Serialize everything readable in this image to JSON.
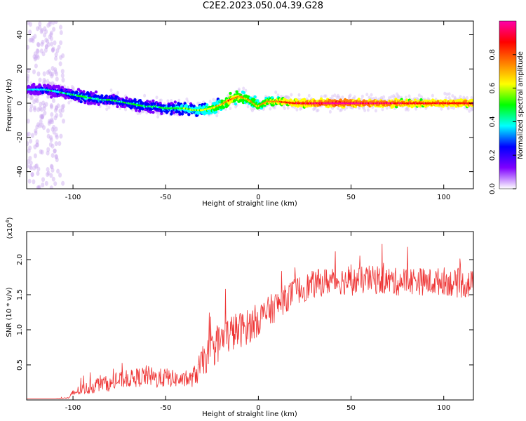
{
  "title": "C2E2.2023.050.04.39.G28",
  "chart_data": [
    {
      "type": "heatmap",
      "title": "",
      "xlabel": "Height of straight line (km)",
      "ylabel": "Frequency (Hz)",
      "xlim": [
        -125,
        116
      ],
      "ylim": [
        -50,
        48
      ],
      "xticks": [
        -100,
        -50,
        0,
        50,
        100
      ],
      "yticks": [
        -40,
        -20,
        0,
        20,
        40
      ],
      "xtick_labels": [
        "-100",
        "-50",
        "0",
        "50",
        "100"
      ],
      "ytick_labels": [
        "-40",
        "-20",
        "0",
        "20",
        "40"
      ],
      "ridge": {
        "x": [
          -125,
          -115,
          -105,
          -100,
          -95,
          -90,
          -85,
          -80,
          -75,
          -70,
          -65,
          -60,
          -55,
          -50,
          -45,
          -40,
          -35,
          -30,
          -25,
          -20,
          -15,
          -10,
          -5,
          0,
          5,
          10,
          20,
          30,
          40,
          50,
          60,
          70,
          80,
          90,
          100,
          116
        ],
        "frequency": [
          8,
          8,
          6,
          5,
          4,
          3,
          2,
          2,
          1,
          0,
          -1,
          -2,
          -2,
          -3,
          -3,
          -3,
          -4,
          -4,
          -3,
          -1,
          2,
          4,
          2,
          -2,
          1,
          1,
          0,
          0,
          0,
          0,
          0,
          0,
          0,
          0,
          0,
          0
        ],
        "amplitude": [
          0.25,
          0.3,
          0.3,
          0.35,
          0.4,
          0.35,
          0.35,
          0.35,
          0.35,
          0.35,
          0.4,
          0.35,
          0.35,
          0.4,
          0.4,
          0.45,
          0.45,
          0.5,
          0.55,
          0.6,
          0.7,
          0.65,
          0.6,
          0.6,
          0.65,
          0.7,
          0.8,
          0.85,
          0.9,
          0.9,
          0.85,
          0.85,
          0.8,
          0.8,
          0.8,
          0.8
        ]
      },
      "colorbar": {
        "label": "Normalized spectral amplitude",
        "range": [
          0,
          1
        ],
        "ticks": [
          0.0,
          0.2,
          0.4,
          0.6,
          0.8
        ],
        "tick_labels": [
          "0.0",
          "0.2",
          "0.4",
          "0.6",
          "0.8"
        ],
        "colors": [
          "#ffffff",
          "#7f00ff",
          "#0000ff",
          "#00ffff",
          "#00ff00",
          "#ffff00",
          "#ff7f00",
          "#ff0000",
          "#ff00aa"
        ]
      }
    },
    {
      "type": "line",
      "title": "",
      "xlabel": "Height of straight line (km)",
      "ylabel": "SNR (10 * v/v)",
      "exponent_label": "(x10",
      "exponent_power": "4",
      "exponent_close": ")",
      "xlim": [
        -125,
        116
      ],
      "ylim": [
        0,
        2.4
      ],
      "xticks": [
        -100,
        -50,
        0,
        50,
        100
      ],
      "yticks": [
        0.5,
        1.0,
        1.5,
        2.0
      ],
      "xtick_labels": [
        "-100",
        "-50",
        "0",
        "50",
        "100"
      ],
      "ytick_labels": [
        "0.5",
        "1.0",
        "1.5",
        "2.0"
      ],
      "series": [
        {
          "color": "#ee3333",
          "x": [
            -125,
            -110,
            -102,
            -100,
            -95,
            -90,
            -85,
            -80,
            -75,
            -70,
            -65,
            -60,
            -55,
            -50,
            -45,
            -40,
            -36,
            -33,
            -30,
            -25,
            -20,
            -15,
            -10,
            -5,
            0,
            5,
            10,
            15,
            20,
            25,
            30,
            35,
            40,
            45,
            50,
            55,
            60,
            65,
            70,
            75,
            80,
            85,
            90,
            95,
            100,
            105,
            110,
            116
          ],
          "values": [
            0.02,
            0.02,
            0.03,
            0.1,
            0.15,
            0.18,
            0.25,
            0.22,
            0.28,
            0.3,
            0.32,
            0.35,
            0.3,
            0.32,
            0.3,
            0.28,
            0.3,
            0.4,
            0.55,
            0.7,
            0.85,
            0.95,
            1.0,
            1.05,
            1.15,
            1.25,
            1.35,
            1.45,
            1.55,
            1.6,
            1.65,
            1.68,
            1.7,
            1.7,
            1.68,
            1.7,
            1.72,
            1.7,
            1.7,
            1.68,
            1.7,
            1.7,
            1.68,
            1.68,
            1.7,
            1.66,
            1.65,
            1.65
          ],
          "noise": [
            0.0,
            0.0,
            0.01,
            0.06,
            0.08,
            0.1,
            0.12,
            0.1,
            0.12,
            0.12,
            0.14,
            0.15,
            0.14,
            0.14,
            0.12,
            0.1,
            0.12,
            0.18,
            0.22,
            0.25,
            0.28,
            0.28,
            0.26,
            0.25,
            0.24,
            0.22,
            0.22,
            0.2,
            0.2,
            0.2,
            0.2,
            0.2,
            0.2,
            0.2,
            0.2,
            0.2,
            0.2,
            0.2,
            0.2,
            0.2,
            0.2,
            0.2,
            0.2,
            0.2,
            0.2,
            0.2,
            0.2,
            0.2
          ]
        }
      ]
    }
  ]
}
